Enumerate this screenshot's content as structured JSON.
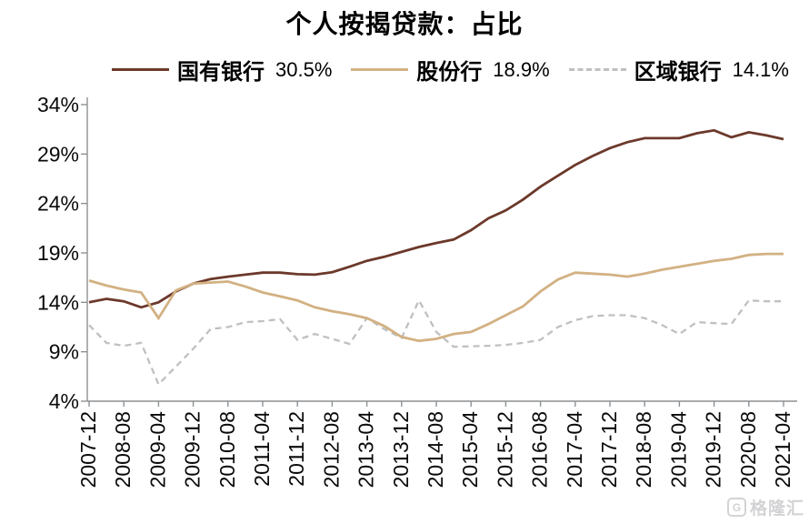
{
  "chart_data": {
    "type": "line",
    "title": "个人按揭贷款：占比",
    "ylabel": "",
    "xlabel": "",
    "ylim": [
      4,
      34
    ],
    "yticks": [
      "34%",
      "29%",
      "24%",
      "19%",
      "14%",
      "9%",
      "4%"
    ],
    "grid": false,
    "legend_position": "top",
    "x_tick_every": 2,
    "x_tick_labels": [
      "2007-12",
      "2008-08",
      "2009-04",
      "2009-12",
      "2010-08",
      "2011-04",
      "2011-12",
      "2012-08",
      "2013-04",
      "2013-12",
      "2014-08",
      "2015-04",
      "2015-12",
      "2016-08",
      "2017-04",
      "2017-12",
      "2018-08",
      "2019-04",
      "2019-12",
      "2020-08",
      "2021-04"
    ],
    "x": [
      "2007-12",
      "2008-04",
      "2008-08",
      "2008-12",
      "2009-04",
      "2009-08",
      "2009-12",
      "2010-04",
      "2010-08",
      "2010-12",
      "2011-04",
      "2011-08",
      "2011-12",
      "2012-04",
      "2012-08",
      "2012-12",
      "2013-04",
      "2013-08",
      "2013-12",
      "2014-04",
      "2014-08",
      "2014-12",
      "2015-04",
      "2015-08",
      "2015-12",
      "2016-04",
      "2016-08",
      "2016-12",
      "2017-04",
      "2017-08",
      "2017-12",
      "2018-04",
      "2018-08",
      "2018-12",
      "2019-04",
      "2019-08",
      "2019-12",
      "2020-04",
      "2020-08",
      "2020-12",
      "2021-04"
    ],
    "series": [
      {
        "name": "国有银行",
        "current": "30.5%",
        "color": "#6C392B",
        "style": "solid",
        "values": [
          14.0,
          14.35,
          14.1,
          13.5,
          14.0,
          15.1,
          15.9,
          16.35,
          16.6,
          16.8,
          17.0,
          17.0,
          16.85,
          16.8,
          17.05,
          17.6,
          18.2,
          18.6,
          19.1,
          19.6,
          20.0,
          20.35,
          21.3,
          22.5,
          23.3,
          24.4,
          25.7,
          26.8,
          27.9,
          28.8,
          29.6,
          30.2,
          30.6,
          30.6,
          30.6,
          31.1,
          31.4,
          30.7,
          31.2,
          30.9,
          30.5
        ]
      },
      {
        "name": "股份行",
        "current": "18.9%",
        "color": "#D2B183",
        "style": "solid",
        "values": [
          16.2,
          15.7,
          15.3,
          15.0,
          12.4,
          15.2,
          15.9,
          16.0,
          16.1,
          15.6,
          15.0,
          14.6,
          14.2,
          13.5,
          13.1,
          12.8,
          12.4,
          11.6,
          10.5,
          10.1,
          10.3,
          10.8,
          11.0,
          11.8,
          12.7,
          13.6,
          15.1,
          16.3,
          17.0,
          16.9,
          16.8,
          16.6,
          16.9,
          17.3,
          17.6,
          17.9,
          18.2,
          18.4,
          18.8,
          18.9,
          18.9
        ]
      },
      {
        "name": "区域银行",
        "current": "14.1%",
        "color": "#BEC0C2",
        "style": "dashed",
        "values": [
          11.7,
          9.9,
          9.6,
          9.9,
          5.7,
          7.5,
          9.3,
          11.3,
          11.5,
          12.0,
          12.1,
          12.3,
          10.2,
          10.8,
          10.3,
          9.8,
          12.4,
          11.3,
          10.4,
          14.2,
          11.0,
          9.5,
          9.55,
          9.6,
          9.7,
          9.9,
          10.2,
          11.5,
          12.2,
          12.6,
          12.7,
          12.7,
          12.4,
          11.7,
          10.8,
          12.0,
          11.9,
          11.8,
          14.2,
          14.1,
          14.1
        ]
      }
    ],
    "axis_color": "#8E9193",
    "text_color": "#0a0a0a"
  },
  "watermark": {
    "logo_letter": "G",
    "text": "格隆汇"
  }
}
